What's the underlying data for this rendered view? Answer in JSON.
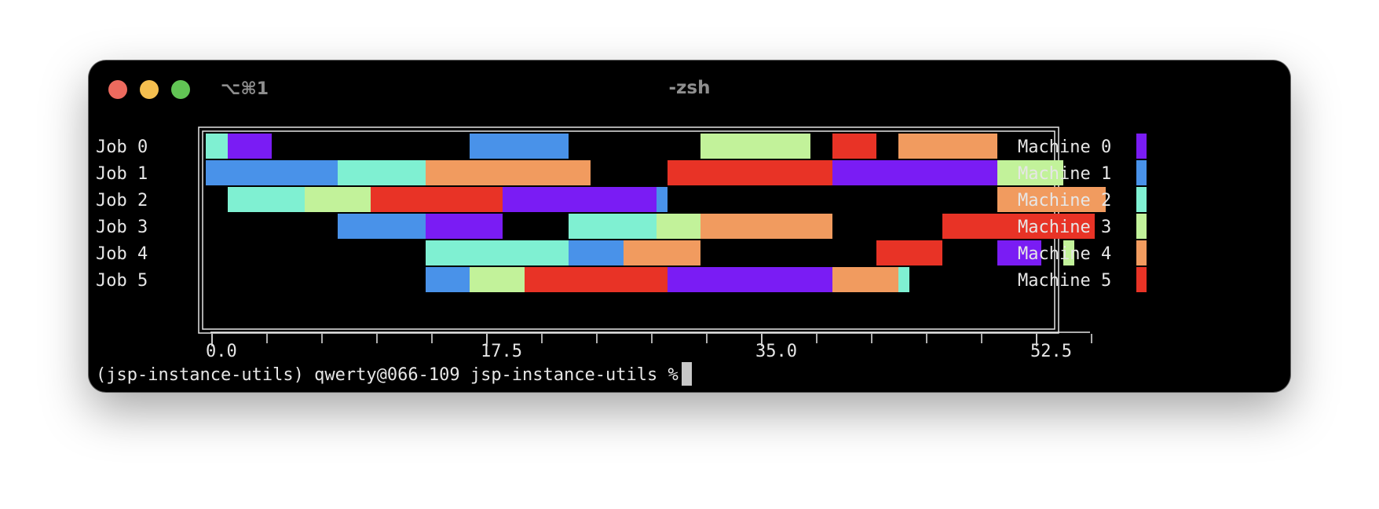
{
  "window": {
    "shortcut": "⌥⌘1",
    "title": "-zsh"
  },
  "terminal": {
    "prompt": "(jsp-instance-utils) qwerty@066-109 jsp-instance-utils %"
  },
  "colors": {
    "Machine 0": "#7a1cf4",
    "Machine 1": "#4992e9",
    "Machine 2": "#7ff0d2",
    "Machine 3": "#c2f29a",
    "Machine 4": "#f19b5f",
    "Machine 5": "#e83326",
    "frame": "#e6e6e6",
    "text": "#e6e6e6",
    "background": "#000000"
  },
  "chart_data": {
    "type": "gantt",
    "title": "",
    "xlabel": "",
    "ylabel": "",
    "xlim": [
      -0.5,
      58
    ],
    "xticks": [
      0.0,
      17.5,
      35.0,
      52.5
    ],
    "xtick_labels": [
      "0.0",
      "17.5",
      "35.0",
      "52.5"
    ],
    "minor_tick_step": 3.5,
    "grid": false,
    "legend_position": "right",
    "jobs": [
      "Job 0",
      "Job 1",
      "Job 2",
      "Job 3",
      "Job 4",
      "Job 5"
    ],
    "machines": [
      "Machine 0",
      "Machine 1",
      "Machine 2",
      "Machine 3",
      "Machine 4",
      "Machine 5"
    ],
    "tasks": [
      {
        "job": 0,
        "machine": 2,
        "start": -0.4,
        "end": 1.0
      },
      {
        "job": 0,
        "machine": 0,
        "start": 1.0,
        "end": 3.8
      },
      {
        "job": 0,
        "machine": 1,
        "start": 16.4,
        "end": 22.7
      },
      {
        "job": 0,
        "machine": 3,
        "start": 31.1,
        "end": 38.1
      },
      {
        "job": 0,
        "machine": 5,
        "start": 39.5,
        "end": 42.3
      },
      {
        "job": 0,
        "machine": 4,
        "start": 43.7,
        "end": 50.0
      },
      {
        "job": 1,
        "machine": 1,
        "start": -0.4,
        "end": 8.0
      },
      {
        "job": 1,
        "machine": 2,
        "start": 8.0,
        "end": 13.6
      },
      {
        "job": 1,
        "machine": 4,
        "start": 13.6,
        "end": 24.1
      },
      {
        "job": 1,
        "machine": 5,
        "start": 29.0,
        "end": 39.5
      },
      {
        "job": 1,
        "machine": 0,
        "start": 39.5,
        "end": 50.0
      },
      {
        "job": 1,
        "machine": 3,
        "start": 50.0,
        "end": 54.2
      },
      {
        "job": 2,
        "machine": 2,
        "start": 1.0,
        "end": 5.9
      },
      {
        "job": 2,
        "machine": 3,
        "start": 5.9,
        "end": 10.1
      },
      {
        "job": 2,
        "machine": 5,
        "start": 10.1,
        "end": 18.5
      },
      {
        "job": 2,
        "machine": 0,
        "start": 18.5,
        "end": 28.3
      },
      {
        "job": 2,
        "machine": 1,
        "start": 28.3,
        "end": 29.0
      },
      {
        "job": 2,
        "machine": 4,
        "start": 50.0,
        "end": 56.9
      },
      {
        "job": 3,
        "machine": 1,
        "start": 8.0,
        "end": 13.6
      },
      {
        "job": 3,
        "machine": 0,
        "start": 13.6,
        "end": 18.5
      },
      {
        "job": 3,
        "machine": 2,
        "start": 22.7,
        "end": 28.3
      },
      {
        "job": 3,
        "machine": 3,
        "start": 28.3,
        "end": 31.1
      },
      {
        "job": 3,
        "machine": 4,
        "start": 31.1,
        "end": 39.5
      },
      {
        "job": 3,
        "machine": 5,
        "start": 46.5,
        "end": 56.2
      },
      {
        "job": 4,
        "machine": 2,
        "start": 13.6,
        "end": 22.7
      },
      {
        "job": 4,
        "machine": 1,
        "start": 22.7,
        "end": 26.2
      },
      {
        "job": 4,
        "machine": 4,
        "start": 26.2,
        "end": 31.1
      },
      {
        "job": 4,
        "machine": 5,
        "start": 42.3,
        "end": 46.5
      },
      {
        "job": 4,
        "machine": 0,
        "start": 50.0,
        "end": 52.8
      },
      {
        "job": 4,
        "machine": 3,
        "start": 54.2,
        "end": 54.9
      },
      {
        "job": 5,
        "machine": 1,
        "start": 13.6,
        "end": 16.4
      },
      {
        "job": 5,
        "machine": 3,
        "start": 16.4,
        "end": 19.9
      },
      {
        "job": 5,
        "machine": 5,
        "start": 19.9,
        "end": 29.0
      },
      {
        "job": 5,
        "machine": 0,
        "start": 29.0,
        "end": 39.5
      },
      {
        "job": 5,
        "machine": 4,
        "start": 39.5,
        "end": 43.7
      },
      {
        "job": 5,
        "machine": 2,
        "start": 43.7,
        "end": 44.4
      }
    ]
  }
}
